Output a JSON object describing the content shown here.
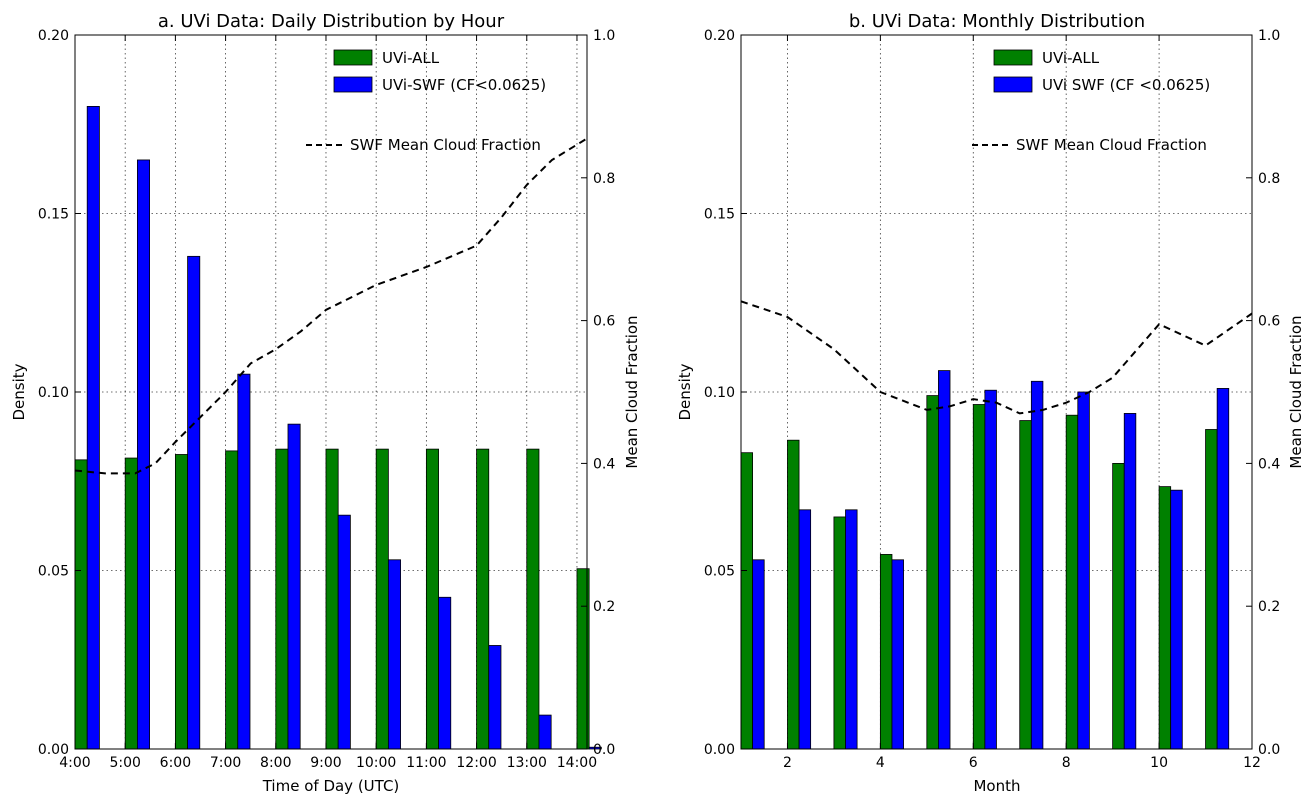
{
  "colors": {
    "all": "#008000",
    "swf": "#0000ff",
    "line": "#000000"
  },
  "chart_data": [
    {
      "type": "bar",
      "title": "a. UVi Data: Daily Distribution by Hour",
      "xlabel": "Time of Day (UTC)",
      "ylabel": "Density",
      "y2label": "Mean Cloud Fraction",
      "xlim": [
        4,
        14.2
      ],
      "ylim": [
        0,
        0.2
      ],
      "y2lim": [
        0,
        1.0
      ],
      "xticks": [
        4,
        5,
        6,
        7,
        8,
        9,
        10,
        11,
        12,
        13,
        14
      ],
      "xtick_labels": [
        "4:00",
        "5:00",
        "6:00",
        "7:00",
        "8:00",
        "9:00",
        "10:00",
        "11:00",
        "12:00",
        "13:00",
        "14:00"
      ],
      "yticks": [
        "0.00",
        "0.05",
        "0.10",
        "0.15",
        "0.20"
      ],
      "y2ticks": [
        "0.0",
        "0.2",
        "0.4",
        "0.6",
        "0.8",
        "1.0"
      ],
      "grid": true,
      "legend_position": "top-right",
      "categories": [
        4,
        5,
        6,
        7,
        8,
        9,
        10,
        11,
        12,
        13,
        14
      ],
      "series": [
        {
          "name": "UVi-ALL",
          "values": [
            0.081,
            0.0815,
            0.0825,
            0.0835,
            0.084,
            0.084,
            0.084,
            0.084,
            0.084,
            0.084,
            0.0505
          ]
        },
        {
          "name": "UVi-SWF (CF<0.0625)",
          "values": [
            0.18,
            0.165,
            0.138,
            0.105,
            0.091,
            0.0655,
            0.053,
            0.0425,
            0.029,
            0.0095,
            0.0005
          ]
        }
      ],
      "line": {
        "name": "SWF Mean Cloud Fraction",
        "x": [
          4,
          4.6,
          5.2,
          5.6,
          6.0,
          6.5,
          7.0,
          7.5,
          8.0,
          8.5,
          9.0,
          10.0,
          11.0,
          12.0,
          12.5,
          13.0,
          13.5,
          14.2
        ],
        "y": [
          0.39,
          0.386,
          0.386,
          0.4,
          0.43,
          0.465,
          0.5,
          0.54,
          0.56,
          0.585,
          0.615,
          0.65,
          0.675,
          0.705,
          0.745,
          0.79,
          0.825,
          0.855
        ]
      }
    },
    {
      "type": "bar",
      "title": "b. UVi Data: Monthly Distribution",
      "xlabel": "Month",
      "ylabel": "Density",
      "y2label": "Mean Cloud Fraction",
      "xlim": [
        1,
        12
      ],
      "ylim": [
        0,
        0.2
      ],
      "y2lim": [
        0,
        1.0
      ],
      "xticks": [
        2,
        4,
        6,
        8,
        10,
        12
      ],
      "xtick_labels": [
        "2",
        "4",
        "6",
        "8",
        "10",
        "12"
      ],
      "yticks": [
        "0.00",
        "0.05",
        "0.10",
        "0.15",
        "0.20"
      ],
      "y2ticks": [
        "0.0",
        "0.2",
        "0.4",
        "0.6",
        "0.8",
        "1.0"
      ],
      "grid": true,
      "legend_position": "top-right",
      "categories": [
        1,
        2,
        3,
        4,
        5,
        6,
        7,
        8,
        9,
        10,
        11
      ],
      "series": [
        {
          "name": "UVi-ALL",
          "values": [
            0.083,
            0.0865,
            0.065,
            0.0545,
            0.099,
            0.0965,
            0.092,
            0.0935,
            0.08,
            0.0735,
            0.0895
          ]
        },
        {
          "name": "UVi SWF (CF <0.0625)",
          "values": [
            0.053,
            0.067,
            0.067,
            0.053,
            0.106,
            0.1005,
            0.103,
            0.1,
            0.094,
            0.0725,
            0.101
          ]
        }
      ],
      "line": {
        "name": "SWF Mean Cloud Fraction",
        "x": [
          1,
          2,
          3,
          4,
          5,
          5.5,
          6,
          6.5,
          7,
          7.5,
          8,
          8.5,
          9,
          10,
          11,
          12
        ],
        "y": [
          0.627,
          0.605,
          0.56,
          0.5,
          0.475,
          0.48,
          0.49,
          0.485,
          0.47,
          0.475,
          0.485,
          0.5,
          0.52,
          0.595,
          0.565,
          0.61
        ]
      }
    }
  ]
}
